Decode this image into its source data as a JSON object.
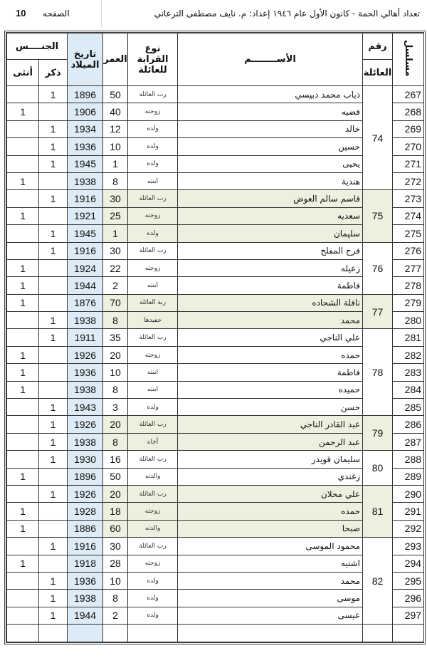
{
  "header": {
    "title": "تعداد أهالي الحمة - كانون الأول عام ١٩٤٦   إعداد: م. نايف مصطفى الترعاني",
    "page_label": "الصفحه",
    "page_number": "10"
  },
  "columns": {
    "serial": "مسلسل",
    "family_no_top": "رقم",
    "family_no_bottom": "العائلة",
    "name": "الأســــــــم",
    "relation": "نوع القرابة للعائلة",
    "age": "العمر",
    "dob": "تاريخ الميلاد",
    "gender": "الجنــــس",
    "male": "ذكر",
    "female": "أنثى"
  },
  "colors": {
    "dob_column": "#dcebf5",
    "family_shade": "#eef0df"
  },
  "families": [
    {
      "no": "74",
      "shaded": false,
      "rows": [
        {
          "serial": "267",
          "name": "ذياب محمد دبيسي",
          "relation": "رب العائلة",
          "age": "50",
          "dob": "1896",
          "male": "1",
          "female": ""
        },
        {
          "serial": "268",
          "name": "فضيه",
          "relation": "زوجته",
          "age": "40",
          "dob": "1906",
          "male": "",
          "female": "1"
        },
        {
          "serial": "269",
          "name": "خالد",
          "relation": "ولده",
          "age": "12",
          "dob": "1934",
          "male": "1",
          "female": ""
        },
        {
          "serial": "270",
          "name": "حسين",
          "relation": "ولده",
          "age": "10",
          "dob": "1936",
          "male": "1",
          "female": ""
        },
        {
          "serial": "271",
          "name": "يحيى",
          "relation": "ولده",
          "age": "1",
          "dob": "1945",
          "male": "1",
          "female": ""
        },
        {
          "serial": "272",
          "name": "هندية",
          "relation": "ابنته",
          "age": "8",
          "dob": "1938",
          "male": "",
          "female": "1"
        }
      ]
    },
    {
      "no": "75",
      "shaded": true,
      "rows": [
        {
          "serial": "273",
          "name": "قاسم سالم العوض",
          "relation": "رب العائلة",
          "age": "30",
          "dob": "1916",
          "male": "1",
          "female": ""
        },
        {
          "serial": "274",
          "name": "سعديه",
          "relation": "زوجته",
          "age": "25",
          "dob": "1921",
          "male": "",
          "female": "1"
        },
        {
          "serial": "275",
          "name": "سليمان",
          "relation": "ولده",
          "age": "1",
          "dob": "1945",
          "male": "1",
          "female": ""
        }
      ]
    },
    {
      "no": "76",
      "shaded": false,
      "rows": [
        {
          "serial": "276",
          "name": "فرج المفلح",
          "relation": "رب العائلة",
          "age": "30",
          "dob": "1916",
          "male": "1",
          "female": ""
        },
        {
          "serial": "277",
          "name": "زعيله",
          "relation": "زوجته",
          "age": "22",
          "dob": "1924",
          "male": "",
          "female": "1"
        },
        {
          "serial": "278",
          "name": "فاطمة",
          "relation": "ابنته",
          "age": "2",
          "dob": "1944",
          "male": "",
          "female": "1"
        }
      ]
    },
    {
      "no": "77",
      "shaded": true,
      "rows": [
        {
          "serial": "279",
          "name": "نافلة الشحاده",
          "relation": "ربة العائلة",
          "age": "70",
          "dob": "1876",
          "male": "",
          "female": "1"
        },
        {
          "serial": "280",
          "name": "محمد",
          "relation": "حفيدها",
          "age": "8",
          "dob": "1938",
          "male": "1",
          "female": ""
        }
      ]
    },
    {
      "no": "78",
      "shaded": false,
      "rows": [
        {
          "serial": "281",
          "name": "علي الناجي",
          "relation": "رب العائلة",
          "age": "35",
          "dob": "1911",
          "male": "1",
          "female": ""
        },
        {
          "serial": "282",
          "name": "حمده",
          "relation": "زوجته",
          "age": "20",
          "dob": "1926",
          "male": "",
          "female": "1"
        },
        {
          "serial": "283",
          "name": "فاطمة",
          "relation": "ابنته",
          "age": "10",
          "dob": "1936",
          "male": "",
          "female": "1"
        },
        {
          "serial": "284",
          "name": "حميده",
          "relation": "ابنته",
          "age": "8",
          "dob": "1938",
          "male": "",
          "female": "1"
        },
        {
          "serial": "285",
          "name": "حسن",
          "relation": "ولده",
          "age": "3",
          "dob": "1943",
          "male": "1",
          "female": ""
        }
      ]
    },
    {
      "no": "79",
      "shaded": true,
      "rows": [
        {
          "serial": "286",
          "name": "عبد القادر الناجي",
          "relation": "رب العائلة",
          "age": "20",
          "dob": "1926",
          "male": "1",
          "female": ""
        },
        {
          "serial": "287",
          "name": "عبد الرحمن",
          "relation": "أخاه",
          "age": "8",
          "dob": "1938",
          "male": "1",
          "female": ""
        }
      ]
    },
    {
      "no": "80",
      "shaded": false,
      "rows": [
        {
          "serial": "288",
          "name": "سليمان قويدر",
          "relation": "رب العائلة",
          "age": "16",
          "dob": "1930",
          "male": "1",
          "female": ""
        },
        {
          "serial": "289",
          "name": "زغندي",
          "relation": "والدته",
          "age": "50",
          "dob": "1896",
          "male": "",
          "female": "1"
        }
      ]
    },
    {
      "no": "81",
      "shaded": true,
      "rows": [
        {
          "serial": "290",
          "name": "علي محلان",
          "relation": "رب العائلة",
          "age": "20",
          "dob": "1926",
          "male": "1",
          "female": ""
        },
        {
          "serial": "291",
          "name": "حمده",
          "relation": "زوجته",
          "age": "18",
          "dob": "1928",
          "male": "",
          "female": "1"
        },
        {
          "serial": "292",
          "name": "صبحا",
          "relation": "والدته",
          "age": "60",
          "dob": "1886",
          "male": "",
          "female": "1"
        }
      ]
    },
    {
      "no": "82",
      "shaded": false,
      "rows": [
        {
          "serial": "293",
          "name": "محمود الموسى",
          "relation": "رب العائلة",
          "age": "30",
          "dob": "1916",
          "male": "1",
          "female": ""
        },
        {
          "serial": "294",
          "name": "اشتيه",
          "relation": "زوجته",
          "age": "28",
          "dob": "1918",
          "male": "",
          "female": "1"
        },
        {
          "serial": "295",
          "name": "محمد",
          "relation": "ولده",
          "age": "10",
          "dob": "1936",
          "male": "1",
          "female": ""
        },
        {
          "serial": "296",
          "name": "موسى",
          "relation": "ولده",
          "age": "8",
          "dob": "1938",
          "male": "1",
          "female": ""
        },
        {
          "serial": "297",
          "name": "عيسى",
          "relation": "ولده",
          "age": "2",
          "dob": "1944",
          "male": "1",
          "female": ""
        }
      ]
    }
  ]
}
